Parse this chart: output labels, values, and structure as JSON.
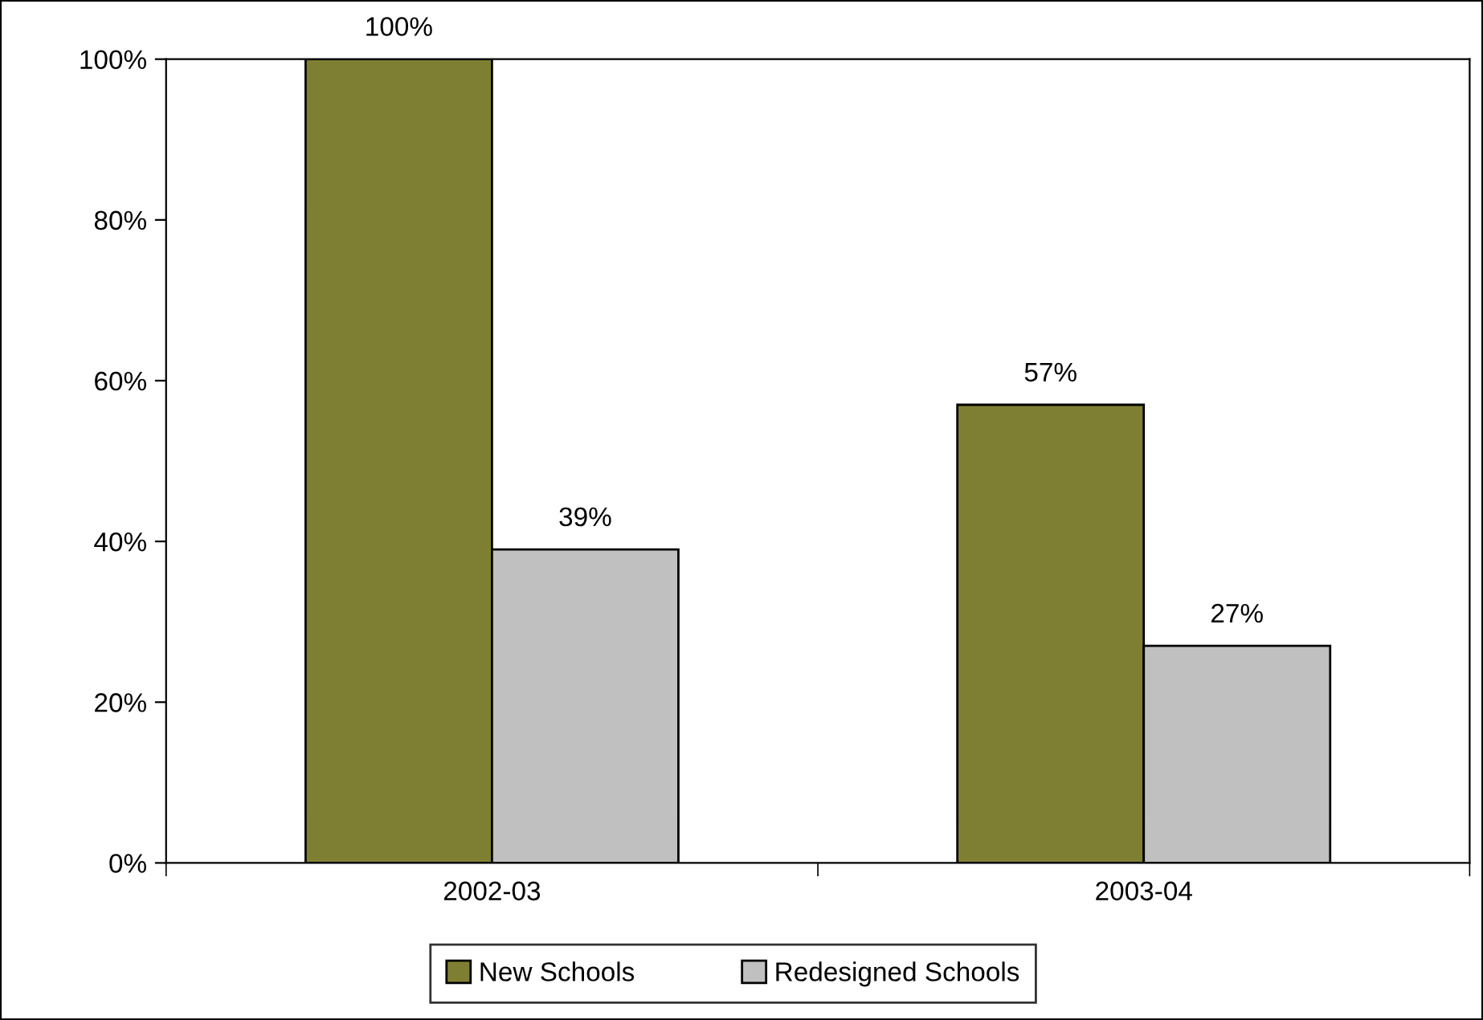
{
  "chart_data": {
    "type": "bar",
    "categories": [
      "2002-03",
      "2003-04"
    ],
    "series": [
      {
        "name": "New Schools",
        "color": "#7f7f33",
        "values": [
          100,
          57
        ],
        "value_labels": [
          "100%",
          "57%"
        ]
      },
      {
        "name": "Redesigned Schools",
        "color": "#c0c0c0",
        "values": [
          39,
          27
        ],
        "value_labels": [
          "39%",
          "27%"
        ]
      }
    ],
    "ylim": [
      0,
      100
    ],
    "yticks": [
      {
        "value": 0,
        "label": "0%"
      },
      {
        "value": 20,
        "label": "20%"
      },
      {
        "value": 40,
        "label": "40%"
      },
      {
        "value": 60,
        "label": "60%"
      },
      {
        "value": 80,
        "label": "80%"
      },
      {
        "value": 100,
        "label": "100%"
      }
    ],
    "grid": false,
    "legend": "bottom"
  }
}
